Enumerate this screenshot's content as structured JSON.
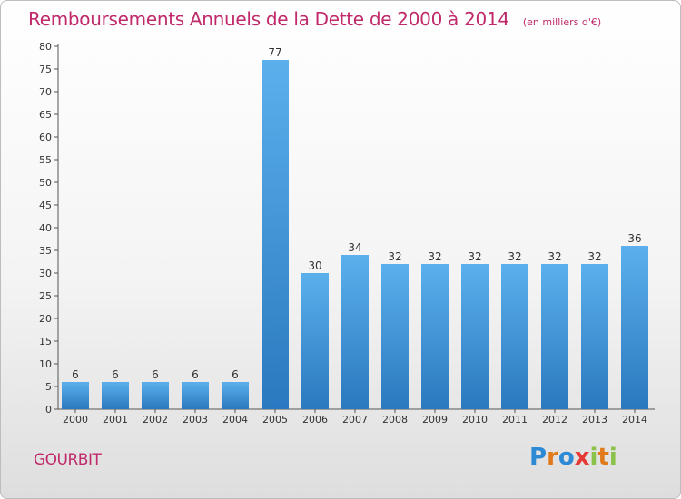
{
  "title": "Remboursements Annuels de la Dette de 2000 à 2014",
  "subtitle": "(en milliers d'€)",
  "commune": "GOURBIT",
  "brand": {
    "letters": [
      "P",
      "r",
      "o",
      "x",
      "i",
      "t",
      "i"
    ],
    "colors": [
      "#2f8ad6",
      "#e07a1a",
      "#2f8ad6",
      "#e53935",
      "#8bc34a",
      "#e07a1a",
      "#8bc34a"
    ]
  },
  "colors": {
    "bar_top": "#5bb0ec",
    "bar_bottom": "#2a78bf",
    "accent_text": "#c0296a"
  },
  "chart_data": {
    "type": "bar",
    "categories": [
      "2000",
      "2001",
      "2002",
      "2003",
      "2004",
      "2005",
      "2006",
      "2007",
      "2008",
      "2009",
      "2010",
      "2011",
      "2012",
      "2013",
      "2014"
    ],
    "values": [
      6,
      6,
      6,
      6,
      6,
      77,
      30,
      34,
      32,
      32,
      32,
      32,
      32,
      32,
      36
    ],
    "data_labels": [
      "6",
      "6",
      "6",
      "6",
      "6",
      "77",
      "30",
      "34",
      "32",
      "32",
      "32",
      "32",
      "32",
      "32",
      "36"
    ],
    "title": "Remboursements Annuels de la Dette de 2000 à 2014",
    "xlabel": "",
    "ylabel": "",
    "ylim": [
      0,
      80
    ],
    "yticks": [
      0,
      5,
      10,
      15,
      20,
      25,
      30,
      35,
      40,
      45,
      50,
      55,
      60,
      65,
      70,
      75,
      80
    ],
    "grid": false,
    "legend": "none"
  }
}
